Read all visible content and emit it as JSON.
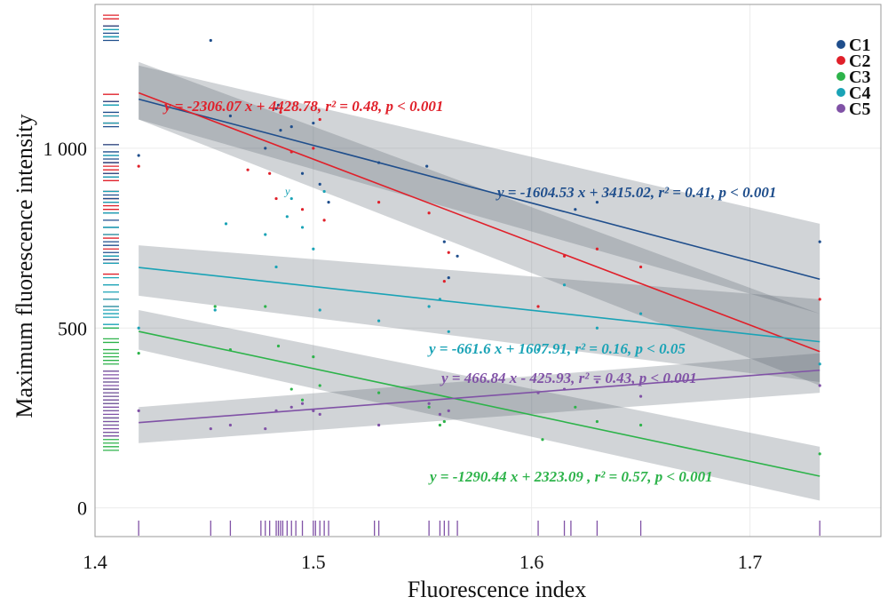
{
  "chart_data": {
    "type": "scatter",
    "xlabel": "Fluorescence index",
    "ylabel": "Maximum fluorescence intensity",
    "xlim": [
      1.4,
      1.76
    ],
    "ylim": [
      -80,
      1400
    ],
    "x_ticks": [
      1.4,
      1.5,
      1.6,
      1.7
    ],
    "x_tick_labels": [
      "1.4",
      "1.5",
      "1.6",
      "1.7"
    ],
    "y_ticks": [
      0,
      500,
      1000
    ],
    "y_tick_labels": [
      "0",
      "500",
      "1 000"
    ],
    "grid": true,
    "legend_position": "top-right",
    "stray_label": "y",
    "series": [
      {
        "name": "C1",
        "color": "#1f4e8c",
        "slope": -1604.53,
        "intercept": 3415.02,
        "ci_low": [
          1080,
          540
        ],
        "ci_high": [
          1230,
          790
        ],
        "equation": "y = -1604.53 x + 3415.02, r² = 0.41, p < 0.001",
        "x": [
          1.42,
          1.453,
          1.462,
          1.478,
          1.483,
          1.484,
          1.485,
          1.49,
          1.495,
          1.5,
          1.503,
          1.507,
          1.53,
          1.552,
          1.56,
          1.562,
          1.566,
          1.62,
          1.63,
          1.732
        ],
        "y": [
          980,
          1300,
          1090,
          1000,
          1110,
          1120,
          1050,
          1060,
          930,
          1070,
          900,
          850,
          960,
          950,
          740,
          640,
          700,
          830,
          850,
          740
        ]
      },
      {
        "name": "C2",
        "color": "#e0202a",
        "slope": -2306.07,
        "intercept": 4428.78,
        "ci_low": [
          1080,
          340
        ],
        "ci_high": [
          1240,
          540
        ],
        "equation": "y = -2306.07 x + 4428.78, r² = 0.48, p < 0.001",
        "x": [
          1.42,
          1.47,
          1.48,
          1.483,
          1.485,
          1.49,
          1.495,
          1.5,
          1.503,
          1.505,
          1.53,
          1.553,
          1.56,
          1.562,
          1.603,
          1.615,
          1.63,
          1.65,
          1.732
        ],
        "y": [
          950,
          940,
          930,
          860,
          1100,
          990,
          830,
          1000,
          1080,
          800,
          850,
          820,
          630,
          710,
          560,
          700,
          720,
          670,
          580
        ]
      },
      {
        "name": "C3",
        "color": "#2db34a",
        "slope": -1290.44,
        "intercept": 2323.09,
        "ci_low": [
          440,
          20
        ],
        "ci_high": [
          550,
          170
        ],
        "equation": "y = -1290.44 x + 2323.09 , r² = 0.57, p < 0.001",
        "x": [
          1.42,
          1.455,
          1.462,
          1.478,
          1.484,
          1.49,
          1.495,
          1.5,
          1.503,
          1.53,
          1.553,
          1.558,
          1.56,
          1.605,
          1.62,
          1.63,
          1.65,
          1.732
        ],
        "y": [
          430,
          560,
          440,
          560,
          450,
          330,
          300,
          420,
          340,
          320,
          280,
          230,
          240,
          190,
          280,
          240,
          230,
          150
        ]
      },
      {
        "name": "C4",
        "color": "#1aa3b6",
        "slope": -661.6,
        "intercept": 1607.91,
        "ci_low": [
          590,
          350
        ],
        "ci_high": [
          730,
          580
        ],
        "equation": "y = -661.6 x + 1607.91, r² = 0.16, p < 0.05",
        "x": [
          1.42,
          1.455,
          1.46,
          1.478,
          1.483,
          1.488,
          1.49,
          1.495,
          1.5,
          1.503,
          1.505,
          1.53,
          1.553,
          1.558,
          1.562,
          1.603,
          1.615,
          1.63,
          1.65,
          1.732
        ],
        "y": [
          500,
          550,
          790,
          760,
          670,
          810,
          860,
          780,
          720,
          550,
          880,
          520,
          560,
          580,
          490,
          440,
          620,
          500,
          540,
          400
        ]
      },
      {
        "name": "C5",
        "color": "#8052a6",
        "slope": 466.84,
        "intercept": -425.93,
        "ci_low": [
          180,
          320
        ],
        "ci_high": [
          280,
          430
        ],
        "equation": "y = 466.84 x - 425.93, r² = 0.43, p < 0.001",
        "x": [
          1.42,
          1.453,
          1.462,
          1.478,
          1.483,
          1.49,
          1.495,
          1.5,
          1.503,
          1.53,
          1.553,
          1.558,
          1.562,
          1.603,
          1.615,
          1.63,
          1.65,
          1.732
        ],
        "y": [
          270,
          220,
          230,
          220,
          270,
          280,
          290,
          270,
          260,
          230,
          290,
          260,
          270,
          320,
          330,
          350,
          310,
          340
        ]
      }
    ],
    "rug_y": {
      "C2": [
        1370,
        1360,
        1340,
        1150,
        1130,
        1090,
        1070,
        1010,
        960,
        950,
        940,
        930,
        910,
        880,
        860,
        850,
        840,
        830,
        760,
        750,
        720,
        700,
        690,
        680,
        650,
        580,
        560
      ],
      "C1": [
        1340,
        1320,
        1310,
        1300,
        1130,
        1120,
        1100,
        1060,
        1010,
        990,
        980,
        970,
        960,
        930,
        920,
        870,
        860,
        850,
        820,
        800,
        780,
        740,
        730,
        710,
        700,
        690,
        680
      ],
      "C4": [
        1330,
        1310,
        1120,
        1090,
        1070,
        980,
        920,
        880,
        850,
        820,
        780,
        760,
        700,
        680,
        640,
        620,
        600,
        580,
        560,
        550,
        540,
        530,
        510,
        500
      ],
      "C3": [
        500,
        470,
        460,
        440,
        430,
        420,
        410,
        400,
        380,
        350,
        330,
        320,
        310,
        300,
        290,
        270,
        250,
        240,
        230,
        210,
        200,
        190,
        180,
        170,
        160
      ],
      "C5": [
        380,
        370,
        360,
        350,
        340,
        330,
        320,
        310,
        300,
        290,
        280,
        270,
        260,
        250,
        240,
        230,
        220,
        210,
        200
      ]
    },
    "rug_x": [
      1.42,
      1.453,
      1.462,
      1.476,
      1.478,
      1.48,
      1.483,
      1.484,
      1.485,
      1.486,
      1.488,
      1.49,
      1.492,
      1.495,
      1.5,
      1.501,
      1.503,
      1.505,
      1.507,
      1.528,
      1.53,
      1.553,
      1.558,
      1.56,
      1.562,
      1.566,
      1.603,
      1.615,
      1.618,
      1.63,
      1.65,
      1.732
    ]
  }
}
